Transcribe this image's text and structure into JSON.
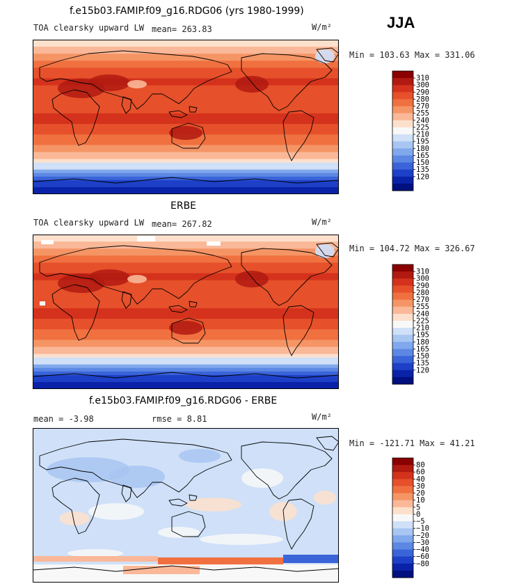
{
  "season": "JJA",
  "units": "W/m²",
  "panels": [
    {
      "title": "f.e15b03.FAMIP.f09_g16.RDG06 (yrs 1980-1999)",
      "subtitle": "TOA clearsky upward LW",
      "stat_text": "mean= 263.83",
      "range_text": "Min = 103.63 Max = 331.06",
      "scale": "full"
    },
    {
      "title": "ERBE",
      "subtitle": "TOA clearsky upward LW",
      "stat_text": "mean= 267.82",
      "range_text": "Min = 104.72 Max = 326.67",
      "scale": "full"
    },
    {
      "title": "f.e15b03.FAMIP.f09_g16.RDG06 - ERBE",
      "subtitle": "mean =   -3.98",
      "stat_text": "rmse =    8.81",
      "range_text": "Min = -121.71 Max =  41.21",
      "scale": "diff"
    }
  ],
  "colorbars": {
    "full": {
      "labels": [
        "310",
        "300",
        "290",
        "280",
        "270",
        "255",
        "240",
        "225",
        "210",
        "195",
        "180",
        "165",
        "150",
        "135",
        "120"
      ],
      "colors": [
        "#8b0000",
        "#b01a10",
        "#d4321c",
        "#e6502a",
        "#f07040",
        "#f59565",
        "#fab898",
        "#fde0cc",
        "#f8f8f8",
        "#cfe0f8",
        "#a8c6f2",
        "#80a8ec",
        "#5c88e4",
        "#3a64d8",
        "#1e40c8",
        "#0a22a8",
        "#00107e"
      ]
    },
    "diff": {
      "labels": [
        "80",
        "60",
        "40",
        "30",
        "20",
        "10",
        "5",
        "0",
        "−5",
        "−10",
        "−20",
        "−30",
        "−40",
        "−60",
        "−80"
      ],
      "colors": [
        "#8b0000",
        "#b01a10",
        "#d4321c",
        "#e6502a",
        "#f07040",
        "#f59565",
        "#fab898",
        "#fde0cc",
        "#f8f8f8",
        "#cfe0f8",
        "#a8c6f2",
        "#80a8ec",
        "#5c88e4",
        "#3a64d8",
        "#1e40c8",
        "#0a22a8",
        "#00107e"
      ]
    }
  },
  "chart_data": [
    {
      "type": "heatmap",
      "title": "f.e15b03.FAMIP.f09_g16.RDG06 (yrs 1980-1999)",
      "subtitle": "TOA clearsky upward LW",
      "mean": 263.83,
      "min": 103.63,
      "max": 331.06,
      "xlim": [
        0,
        360
      ],
      "ylim": [
        -90,
        90
      ],
      "levels": [
        120,
        135,
        150,
        165,
        180,
        195,
        210,
        225,
        240,
        255,
        270,
        280,
        290,
        300,
        310
      ]
    },
    {
      "type": "heatmap",
      "title": "ERBE",
      "subtitle": "TOA clearsky upward LW",
      "mean": 267.82,
      "min": 104.72,
      "max": 326.67,
      "xlim": [
        0,
        360
      ],
      "ylim": [
        -90,
        90
      ],
      "levels": [
        120,
        135,
        150,
        165,
        180,
        195,
        210,
        225,
        240,
        255,
        270,
        280,
        290,
        300,
        310
      ]
    },
    {
      "type": "heatmap",
      "title": "f.e15b03.FAMIP.f09_g16.RDG06 - ERBE",
      "mean": -3.98,
      "rmse": 8.81,
      "min": -121.71,
      "max": 41.21,
      "xlim": [
        0,
        360
      ],
      "ylim": [
        -90,
        90
      ],
      "levels": [
        -80,
        -60,
        -40,
        -30,
        -20,
        -10,
        -5,
        0,
        5,
        10,
        20,
        30,
        40,
        60,
        80
      ]
    }
  ]
}
